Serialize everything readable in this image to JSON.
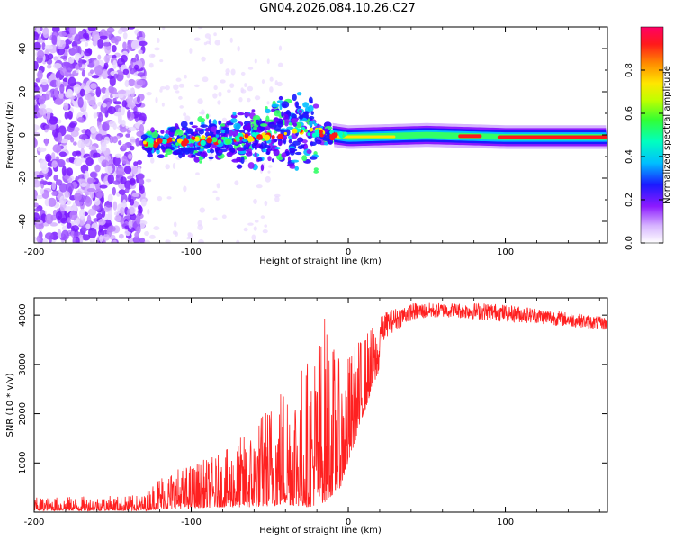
{
  "title": "GN04.2026.084.10.26.C27",
  "chart_data": [
    {
      "type": "heatmap",
      "title": "GN04.2026.084.10.26.C27",
      "xlabel": "Height of straight line (km)",
      "ylabel": "Frequency (Hz)",
      "xlim": [
        -200,
        165
      ],
      "ylim": [
        -50,
        50
      ],
      "xticks": [
        "-200",
        "-100",
        "0",
        "100"
      ],
      "yticks": [
        "-40",
        "-20",
        "0",
        "20",
        "40"
      ],
      "colorbar": {
        "label": "Normalized spectral amplitude",
        "range": [
          0.0,
          1.0
        ],
        "ticks": [
          "0.0",
          "0.2",
          "0.4",
          "0.6",
          "0.8"
        ],
        "colors": [
          "#ffffff",
          "#cc99ff",
          "#8800ff",
          "#0000ff",
          "#00ffff",
          "#00ff00",
          "#ffff00",
          "#ff8800",
          "#ff0000",
          "#ff0066"
        ]
      },
      "description_series": {
        "noise_region_x": [
          -200,
          -130
        ],
        "signal_start_x": -130,
        "signal_centerline": [
          {
            "x": -130,
            "y": -4
          },
          {
            "x": -100,
            "y": -3
          },
          {
            "x": -60,
            "y": -1
          },
          {
            "x": -30,
            "y": 2
          },
          {
            "x": 0,
            "y": -1
          },
          {
            "x": 50,
            "y": 0
          },
          {
            "x": 100,
            "y": -1
          },
          {
            "x": 165,
            "y": -1
          }
        ]
      }
    },
    {
      "type": "line",
      "xlabel": "Height of straight line (km)",
      "ylabel": "SNR (10 * v/v)",
      "xlim": [
        -200,
        165
      ],
      "ylim": [
        0,
        4350
      ],
      "xticks": [
        "-200",
        "-100",
        "0",
        "100"
      ],
      "yticks": [
        "1000",
        "2000",
        "3000",
        "4000"
      ],
      "series": [
        {
          "name": "SNR",
          "color": "#ff2020",
          "envelope": [
            {
              "x": -200,
              "lo": 30,
              "hi": 300
            },
            {
              "x": -130,
              "lo": 30,
              "hi": 350
            },
            {
              "x": -120,
              "lo": 60,
              "hi": 800
            },
            {
              "x": -100,
              "lo": 80,
              "hi": 1000
            },
            {
              "x": -80,
              "lo": 100,
              "hi": 1200
            },
            {
              "x": -60,
              "lo": 100,
              "hi": 1800
            },
            {
              "x": -40,
              "lo": 150,
              "hi": 2900
            },
            {
              "x": -25,
              "lo": 100,
              "hi": 3200
            },
            {
              "x": -15,
              "lo": 200,
              "hi": 4100
            },
            {
              "x": -5,
              "lo": 500,
              "hi": 3000
            },
            {
              "x": 5,
              "lo": 1500,
              "hi": 3500
            },
            {
              "x": 15,
              "lo": 2500,
              "hi": 3800
            },
            {
              "x": 25,
              "lo": 3300,
              "hi": 4100
            },
            {
              "x": 40,
              "lo": 3700,
              "hi": 4250
            },
            {
              "x": 60,
              "lo": 3800,
              "hi": 4250
            },
            {
              "x": 90,
              "lo": 3700,
              "hi": 4250
            },
            {
              "x": 120,
              "lo": 3650,
              "hi": 4150
            },
            {
              "x": 165,
              "lo": 3550,
              "hi": 3950
            }
          ]
        }
      ]
    }
  ]
}
